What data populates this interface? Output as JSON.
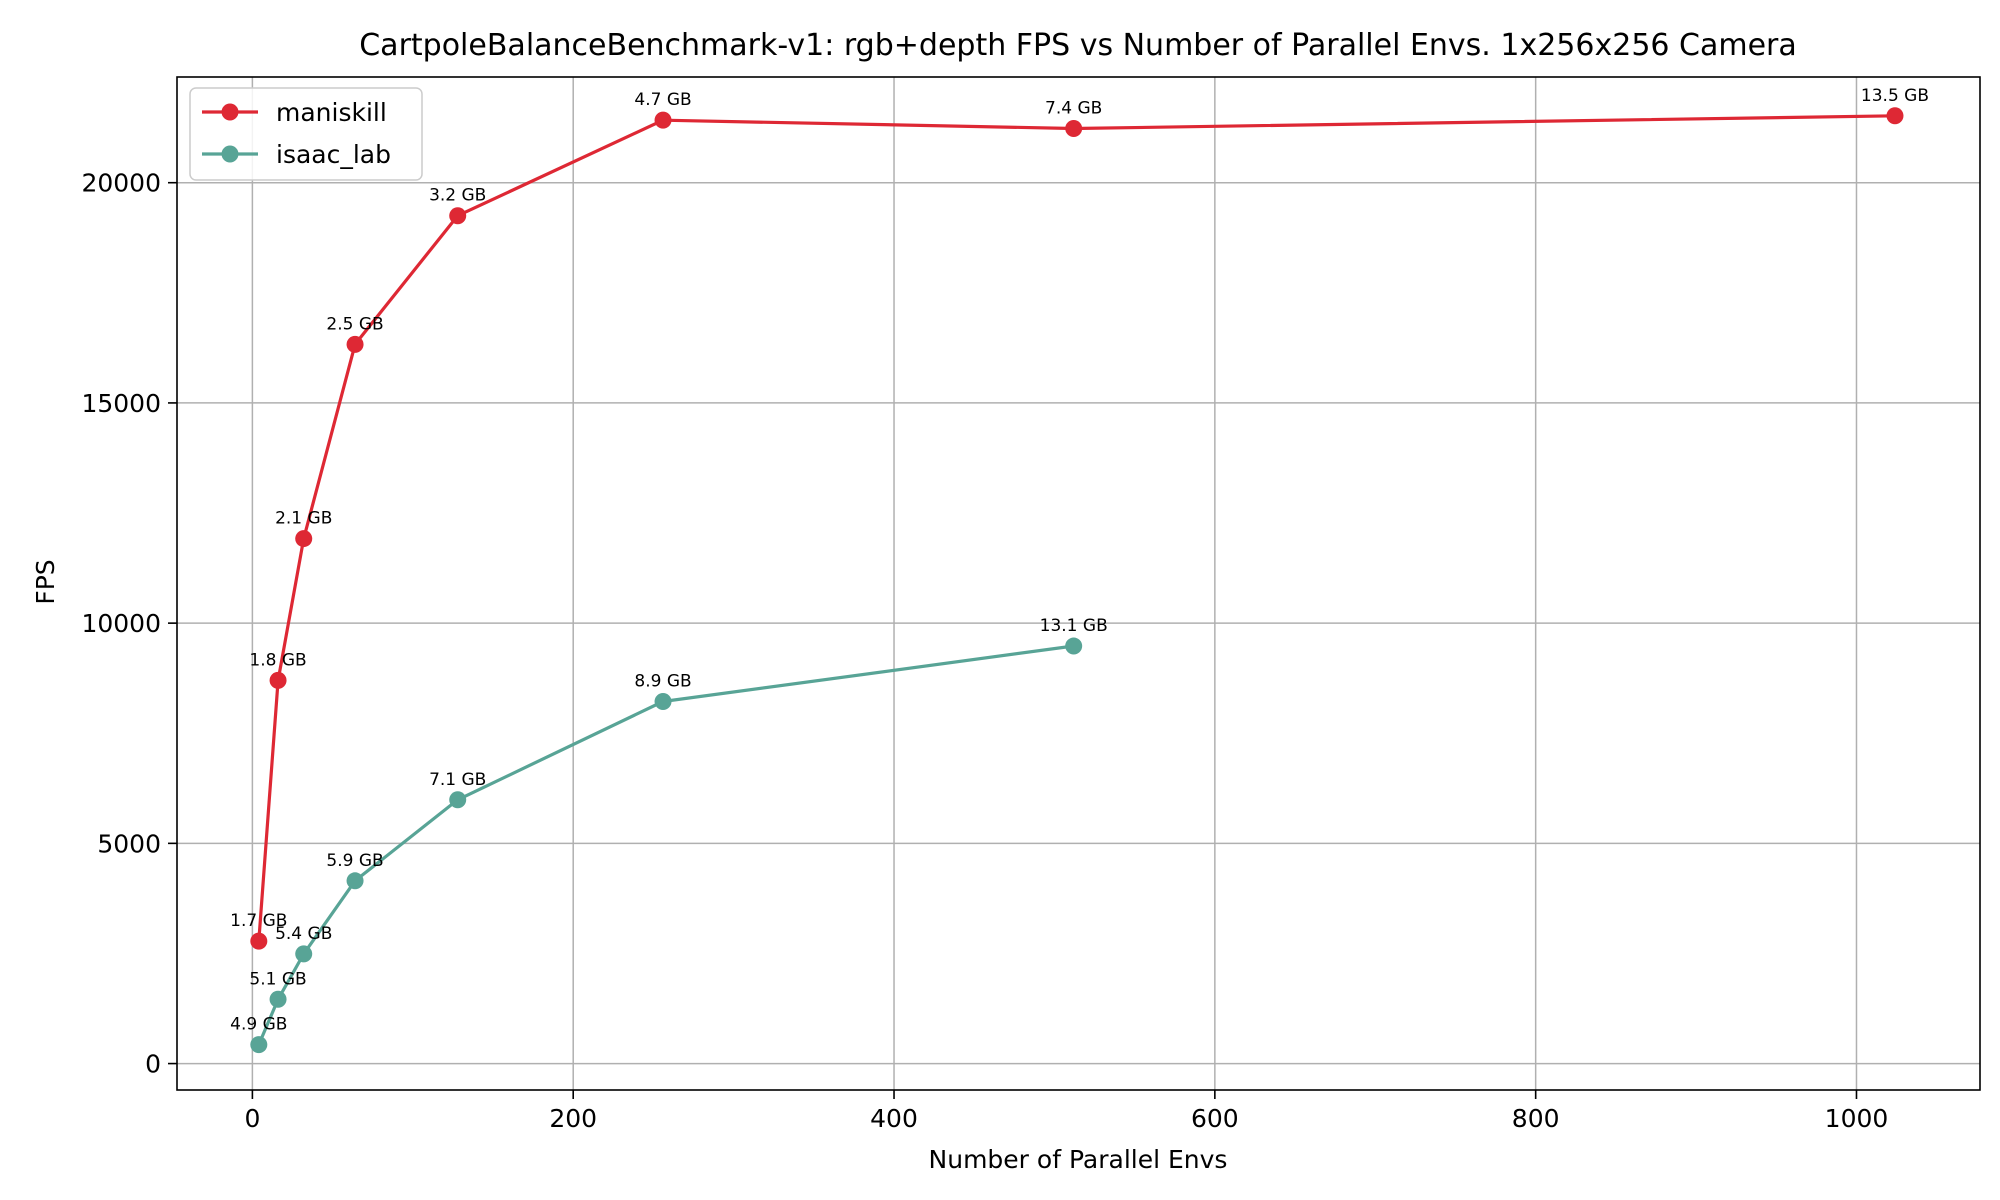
{
  "chart_data": {
    "type": "line",
    "title": "CartpoleBalanceBenchmark-v1: rgb+depth FPS vs Number of Parallel Envs. 1x256x256 Camera",
    "xlabel": "Number of Parallel Envs",
    "ylabel": "FPS",
    "xlim": [
      -47,
      1077
    ],
    "ylim": [
      -600,
      22400
    ],
    "xticks": [
      0,
      200,
      400,
      600,
      800,
      1000
    ],
    "yticks": [
      0,
      5000,
      10000,
      15000,
      20000
    ],
    "grid": true,
    "legend": "top-left",
    "series": [
      {
        "name": "maniskill",
        "color": "#de2834",
        "x": [
          4,
          16,
          32,
          64,
          128,
          256,
          512,
          1024
        ],
        "y": [
          2780,
          8700,
          11920,
          16330,
          19250,
          21420,
          21230,
          21520
        ],
        "labels": [
          "1.7 GB",
          "1.8 GB",
          "2.1 GB",
          "2.5 GB",
          "3.2 GB",
          "4.7 GB",
          "7.4 GB",
          "13.5 GB"
        ]
      },
      {
        "name": "isaac_lab",
        "color": "#58a496",
        "x": [
          4,
          16,
          32,
          64,
          128,
          256,
          512
        ],
        "y": [
          430,
          1460,
          2490,
          4150,
          5990,
          8220,
          9480
        ],
        "labels": [
          "4.9 GB",
          "5.1 GB",
          "5.4 GB",
          "5.9 GB",
          "7.1 GB",
          "8.9 GB",
          "13.1 GB"
        ]
      }
    ]
  }
}
